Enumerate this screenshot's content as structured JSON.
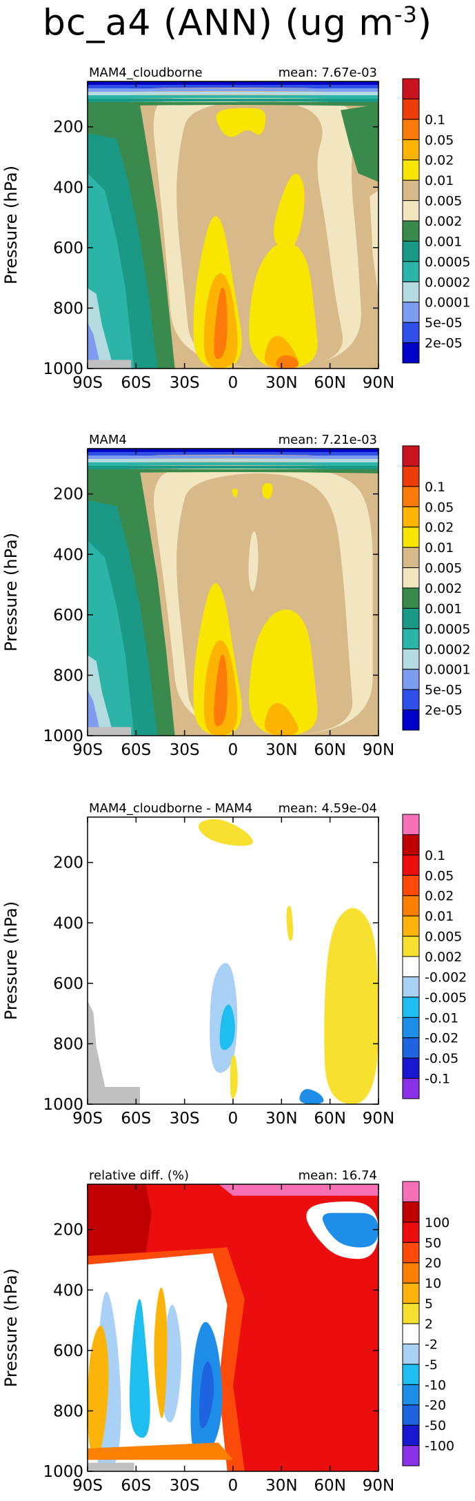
{
  "figure": {
    "title_main": "bc_a4 (ANN) (ug m",
    "title_sup": "-3",
    "title_close": ")"
  },
  "colors": {
    "conc_scale": [
      "#0000c8",
      "#2e50e6",
      "#7e9cf0",
      "#b4dce0",
      "#2cb4a8",
      "#1a9a86",
      "#3a8a4e",
      "#f1e6c0",
      "#d7b98a",
      "#f8e500",
      "#fcb400",
      "#fc7a0a",
      "#ec3c08",
      "#c8141e"
    ],
    "diff_scale": [
      "#8a30e8",
      "#1818d0",
      "#1e64e0",
      "#1e8ee8",
      "#1ebef0",
      "#a9d0f5",
      "#ffffff",
      "#f8e030",
      "#fcb40a",
      "#fc8000",
      "#fc4a0a",
      "#ec0e0e",
      "#c00000",
      "#f770b6"
    ],
    "land_mask": "#c0c0c0"
  },
  "chart_data": [
    {
      "type": "contour",
      "panel_label": "MAM4_cloudborne",
      "mean_label": "mean: 7.67e-03",
      "ylabel": "Pressure (hPa)",
      "x_ticks": [
        "90S",
        "60S",
        "30S",
        "0",
        "30N",
        "60N",
        "90N"
      ],
      "y_ticks": [
        "200",
        "400",
        "600",
        "800",
        "1000"
      ],
      "y_range": [
        1000,
        50
      ],
      "colorbar_levels": [
        "2e-05",
        "5e-05",
        "0.0001",
        "0.0002",
        "0.0005",
        "0.001",
        "0.002",
        "0.005",
        "0.01",
        "0.02",
        "0.05",
        "0.1"
      ],
      "mean_value": 0.00767
    },
    {
      "type": "contour",
      "panel_label": "MAM4",
      "mean_label": "mean: 7.21e-03",
      "ylabel": "Pressure (hPa)",
      "x_ticks": [
        "90S",
        "60S",
        "30S",
        "0",
        "30N",
        "60N",
        "90N"
      ],
      "y_ticks": [
        "200",
        "400",
        "600",
        "800",
        "1000"
      ],
      "y_range": [
        1000,
        50
      ],
      "colorbar_levels": [
        "2e-05",
        "5e-05",
        "0.0001",
        "0.0002",
        "0.0005",
        "0.001",
        "0.002",
        "0.005",
        "0.01",
        "0.02",
        "0.05",
        "0.1"
      ],
      "mean_value": 0.00721
    },
    {
      "type": "contour",
      "panel_label": "MAM4_cloudborne - MAM4",
      "mean_label": "mean: 4.59e-04",
      "ylabel": "Pressure (hPa)",
      "x_ticks": [
        "90S",
        "60S",
        "30S",
        "0",
        "30N",
        "60N",
        "90N"
      ],
      "y_ticks": [
        "200",
        "400",
        "600",
        "800",
        "1000"
      ],
      "y_range": [
        1000,
        50
      ],
      "colorbar_levels": [
        "-0.1",
        "-0.05",
        "-0.02",
        "-0.01",
        "-0.005",
        "-0.002",
        "0.002",
        "0.005",
        "0.01",
        "0.02",
        "0.05",
        "0.1"
      ],
      "mean_value": 0.000459
    },
    {
      "type": "contour",
      "panel_label": "relative diff. (%)",
      "mean_label": "mean: 16.74",
      "ylabel": "Pressure (hPa)",
      "x_ticks": [
        "90S",
        "60S",
        "30S",
        "0",
        "30N",
        "60N",
        "90N"
      ],
      "y_ticks": [
        "200",
        "400",
        "600",
        "800",
        "1000"
      ],
      "y_range": [
        1000,
        50
      ],
      "colorbar_levels": [
        "-100",
        "-50",
        "-20",
        "-10",
        "-5",
        "-2",
        "2",
        "5",
        "10",
        "20",
        "50",
        "100"
      ],
      "mean_value": 16.74
    }
  ]
}
